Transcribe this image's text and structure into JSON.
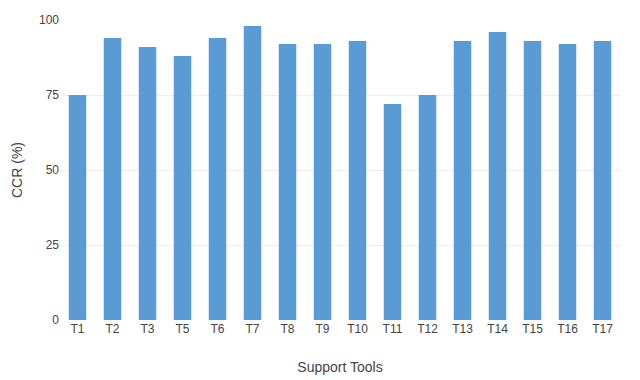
{
  "chart_data": {
    "type": "bar",
    "categories": [
      "T1",
      "T2",
      "T3",
      "T5",
      "T6",
      "T7",
      "T8",
      "T9",
      "T10",
      "T11",
      "T12",
      "T13",
      "T14",
      "T15",
      "T16",
      "T17"
    ],
    "values": [
      75,
      94,
      91,
      88,
      94,
      98,
      92,
      92,
      93,
      72,
      75,
      93,
      96,
      93,
      92,
      93
    ],
    "color": "#5b9bd5",
    "xlabel": "Support Tools",
    "ylabel": "CCR (%)",
    "ylim": [
      0,
      100
    ],
    "yticks": [
      0,
      25,
      50,
      75,
      100
    ],
    "grid": true
  }
}
